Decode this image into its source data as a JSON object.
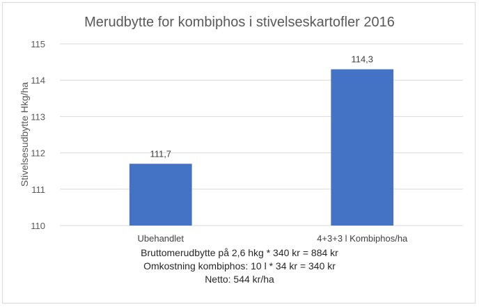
{
  "chart_data": {
    "type": "bar",
    "title": "Merudbytte for kombiphos i stivelseskartofler 2016",
    "ylabel": "Stivelsesudbytte Hkg/ha",
    "xlabel": "",
    "categories": [
      "Ubehandlet",
      "4+3+3 l Kombiphos/ha"
    ],
    "values": [
      111.7,
      114.3
    ],
    "data_labels": [
      "111,7",
      "114,3"
    ],
    "ylim": [
      110,
      115
    ],
    "yticks": [
      110,
      111,
      112,
      113,
      114,
      115
    ],
    "ytick_labels": [
      "110",
      "111",
      "112",
      "113",
      "114",
      "115"
    ],
    "grid": true,
    "legend": "none",
    "bar_color": "#4472c4",
    "grid_color": "#d9d9d9",
    "text_color": "#595959"
  },
  "notes": [
    "Bruttomerudbytte på 2,6 hkg * 340 kr = 884 kr",
    "Omkostning kombiphos: 10 l * 34 kr = 340 kr",
    "Netto: 544 kr/ha"
  ]
}
